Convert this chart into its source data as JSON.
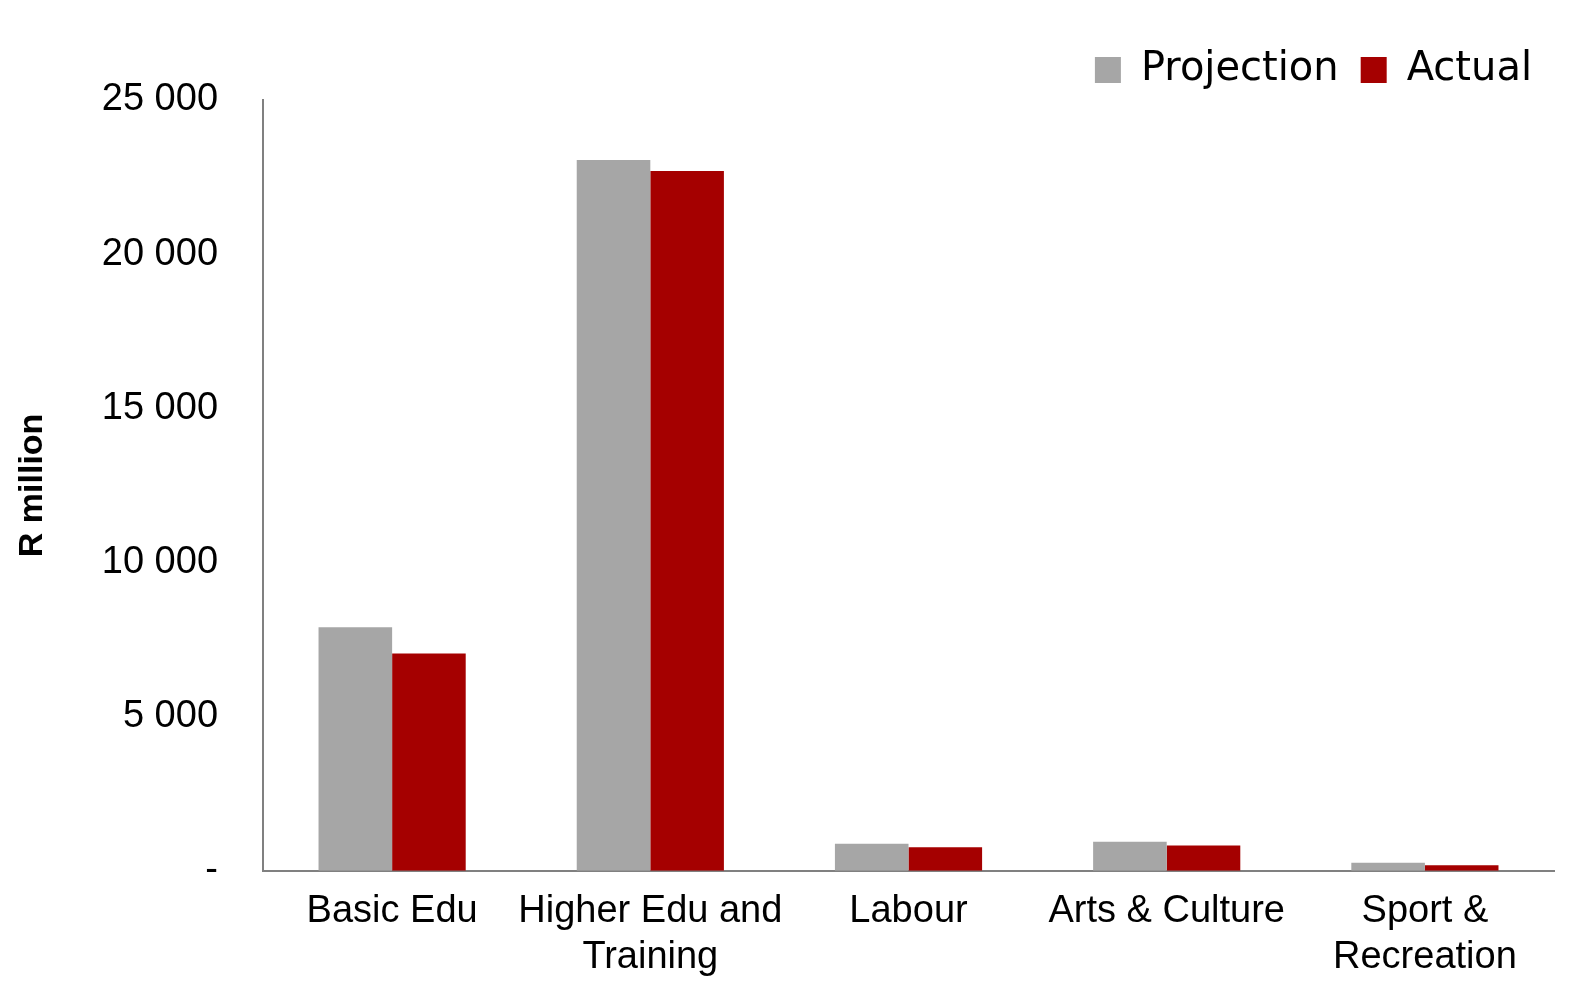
{
  "chart_data": {
    "type": "bar",
    "ylabel": "R million",
    "categories": [
      "Basic Edu",
      "Higher Edu and Training",
      "Labour",
      "Arts & Culture",
      "Sport & Recreation"
    ],
    "series": [
      {
        "name": "Projection",
        "color": "#a6a6a6",
        "values": [
          7900,
          23050,
          880,
          940,
          260
        ]
      },
      {
        "name": "Actual",
        "color": "#a50000",
        "values": [
          7050,
          22700,
          760,
          820,
          180
        ]
      }
    ],
    "ylim": [
      0,
      25000
    ],
    "yticks": [
      {
        "value": 0,
        "label": "-"
      },
      {
        "value": 5000,
        "label": "5 000"
      },
      {
        "value": 10000,
        "label": "10 000"
      },
      {
        "value": 15000,
        "label": "15 000"
      },
      {
        "value": 20000,
        "label": "20 000"
      },
      {
        "value": 25000,
        "label": "25 000"
      }
    ],
    "grid": false,
    "legend": "top right"
  }
}
